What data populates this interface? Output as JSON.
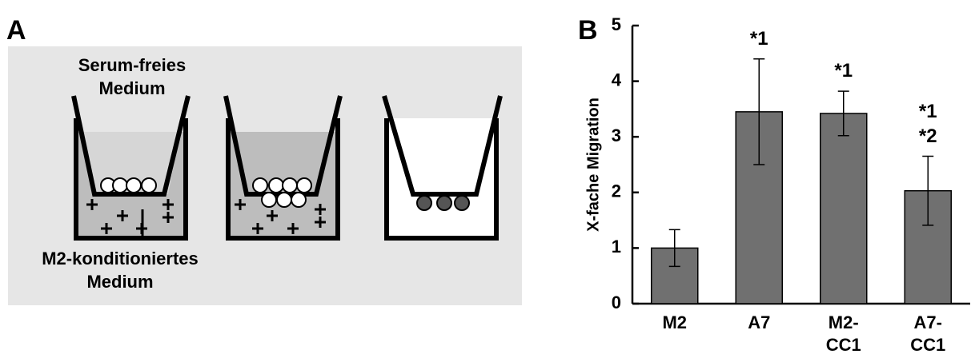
{
  "panel_a": {
    "label": "A",
    "top_text": "Serum-freies\nMedium",
    "bottom_text": "M2-konditioniertes\nMedium"
  },
  "chart_data": {
    "type": "bar",
    "panel_label": "B",
    "ylabel": "X-fache Migration",
    "categories": [
      "M2",
      "A7",
      "M2-\nCC1",
      "A7-\nCC1"
    ],
    "values": [
      1.0,
      3.45,
      3.42,
      2.03
    ],
    "errors": [
      0.33,
      0.95,
      0.4,
      0.62
    ],
    "annotations": [
      null,
      "*1",
      "*1",
      "*1\n*2"
    ],
    "color": "#707070",
    "ylim": [
      0,
      5
    ],
    "yticks": [
      0,
      1,
      2,
      3,
      4,
      5
    ],
    "grid": false
  }
}
